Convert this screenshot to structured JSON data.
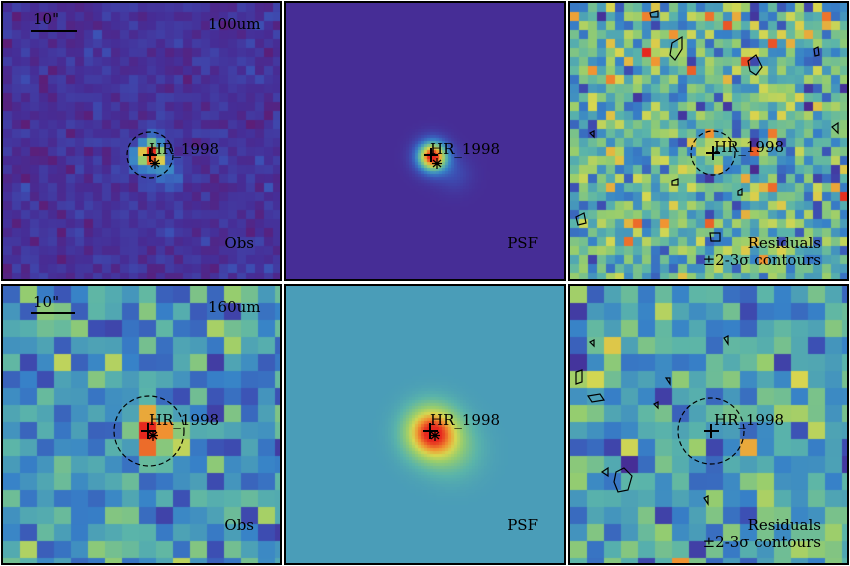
{
  "figure": {
    "source_name": "HR_1998",
    "scale_label": "10\"",
    "colors": {
      "border": "#000000",
      "text": "#000000"
    },
    "rows": [
      {
        "band": "100um",
        "panels": [
          {
            "kind": "obs",
            "label": "Obs"
          },
          {
            "kind": "psf",
            "label": "PSF"
          },
          {
            "kind": "res",
            "label": "Residuals",
            "sublabel": "±2-3σ contours"
          }
        ]
      },
      {
        "band": "160um",
        "panels": [
          {
            "kind": "obs",
            "label": "Obs"
          },
          {
            "kind": "psf",
            "label": "PSF"
          },
          {
            "kind": "res",
            "label": "Residuals",
            "sublabel": "±2-3σ contours"
          }
        ]
      }
    ]
  }
}
